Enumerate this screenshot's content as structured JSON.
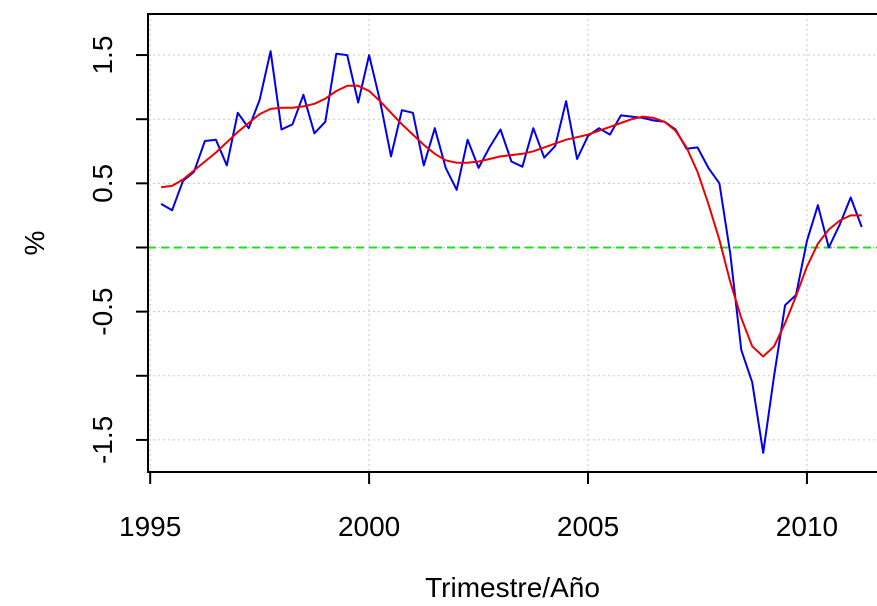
{
  "chart_data": {
    "type": "line",
    "title": "",
    "xlabel": "Trimestre/Año",
    "ylabel": "%",
    "xlim": [
      1994.95,
      2011.6
    ],
    "ylim": [
      -1.75,
      1.82
    ],
    "x_ticks": [
      1995,
      2000,
      2005,
      2010
    ],
    "x_tick_labels": [
      "1995",
      "2000",
      "2005",
      "2010"
    ],
    "y_ticks": [
      -1.5,
      -0.5,
      0.5,
      1.5
    ],
    "y_tick_labels": [
      "-1.5",
      "-0.5",
      "0.5",
      "1.5"
    ],
    "y_minor_ticks": [
      -1.0,
      0.0,
      1.0
    ],
    "grid": true,
    "legend": "none",
    "reference_line": {
      "y": 0.0,
      "color": "#22dd22",
      "style": "dashed"
    },
    "series": [
      {
        "color": "#0000ee",
        "x": [
          1995.25,
          1995.5,
          1995.75,
          1996.0,
          1996.25,
          1996.5,
          1996.75,
          1997.0,
          1997.25,
          1997.5,
          1997.75,
          1998.0,
          1998.25,
          1998.5,
          1998.75,
          1999.0,
          1999.25,
          1999.5,
          1999.75,
          2000.0,
          2000.25,
          2000.5,
          2000.75,
          2001.0,
          2001.25,
          2001.5,
          2001.75,
          2002.0,
          2002.25,
          2002.5,
          2002.75,
          2003.0,
          2003.25,
          2003.5,
          2003.75,
          2004.0,
          2004.25,
          2004.5,
          2004.75,
          2005.0,
          2005.25,
          2005.5,
          2005.75,
          2006.0,
          2006.25,
          2006.5,
          2006.75,
          2007.0,
          2007.25,
          2007.5,
          2007.75,
          2008.0,
          2008.25,
          2008.5,
          2008.75,
          2009.0,
          2009.25,
          2009.5,
          2009.75,
          2010.0,
          2010.25,
          2010.5,
          2010.75,
          2011.0,
          2011.25
        ],
        "values": [
          0.34,
          0.29,
          0.52,
          0.59,
          0.83,
          0.84,
          0.64,
          1.05,
          0.93,
          1.15,
          1.53,
          0.92,
          0.96,
          1.19,
          0.89,
          0.98,
          1.51,
          1.5,
          1.13,
          1.5,
          1.14,
          0.71,
          1.07,
          1.05,
          0.64,
          0.93,
          0.62,
          0.45,
          0.84,
          0.62,
          0.78,
          0.92,
          0.67,
          0.63,
          0.93,
          0.7,
          0.79,
          1.14,
          0.69,
          0.87,
          0.93,
          0.88,
          1.03,
          1.02,
          1.01,
          0.99,
          0.98,
          0.92,
          0.77,
          0.78,
          0.62,
          0.5,
          -0.05,
          -0.8,
          -1.05,
          -1.6,
          -1.0,
          -0.45,
          -0.37,
          0.05,
          0.33,
          0.0,
          0.18,
          0.39,
          0.16
        ]
      },
      {
        "color": "#ee0000",
        "x": [
          1995.25,
          1995.5,
          1995.75,
          1996.0,
          1996.25,
          1996.5,
          1996.75,
          1997.0,
          1997.25,
          1997.5,
          1997.75,
          1998.0,
          1998.25,
          1998.5,
          1998.75,
          1999.0,
          1999.25,
          1999.5,
          1999.75,
          2000.0,
          2000.25,
          2000.5,
          2000.75,
          2001.0,
          2001.25,
          2001.5,
          2001.75,
          2002.0,
          2002.25,
          2002.5,
          2002.75,
          2003.0,
          2003.25,
          2003.5,
          2003.75,
          2004.0,
          2004.25,
          2004.5,
          2004.75,
          2005.0,
          2005.25,
          2005.5,
          2005.75,
          2006.0,
          2006.25,
          2006.5,
          2006.75,
          2007.0,
          2007.25,
          2007.5,
          2007.75,
          2008.0,
          2008.25,
          2008.5,
          2008.75,
          2009.0,
          2009.25,
          2009.5,
          2009.75,
          2010.0,
          2010.25,
          2010.5,
          2010.75,
          2011.0,
          2011.25
        ],
        "values": [
          0.47,
          0.48,
          0.53,
          0.6,
          0.67,
          0.74,
          0.82,
          0.9,
          0.97,
          1.04,
          1.08,
          1.09,
          1.09,
          1.1,
          1.12,
          1.16,
          1.22,
          1.26,
          1.26,
          1.22,
          1.14,
          1.05,
          0.96,
          0.88,
          0.8,
          0.73,
          0.68,
          0.66,
          0.66,
          0.67,
          0.69,
          0.71,
          0.72,
          0.73,
          0.75,
          0.78,
          0.81,
          0.84,
          0.86,
          0.88,
          0.91,
          0.94,
          0.97,
          1.0,
          1.02,
          1.01,
          0.98,
          0.91,
          0.78,
          0.59,
          0.34,
          0.06,
          -0.27,
          -0.55,
          -0.77,
          -0.85,
          -0.77,
          -0.59,
          -0.38,
          -0.15,
          0.03,
          0.14,
          0.21,
          0.25,
          0.25
        ]
      }
    ]
  }
}
